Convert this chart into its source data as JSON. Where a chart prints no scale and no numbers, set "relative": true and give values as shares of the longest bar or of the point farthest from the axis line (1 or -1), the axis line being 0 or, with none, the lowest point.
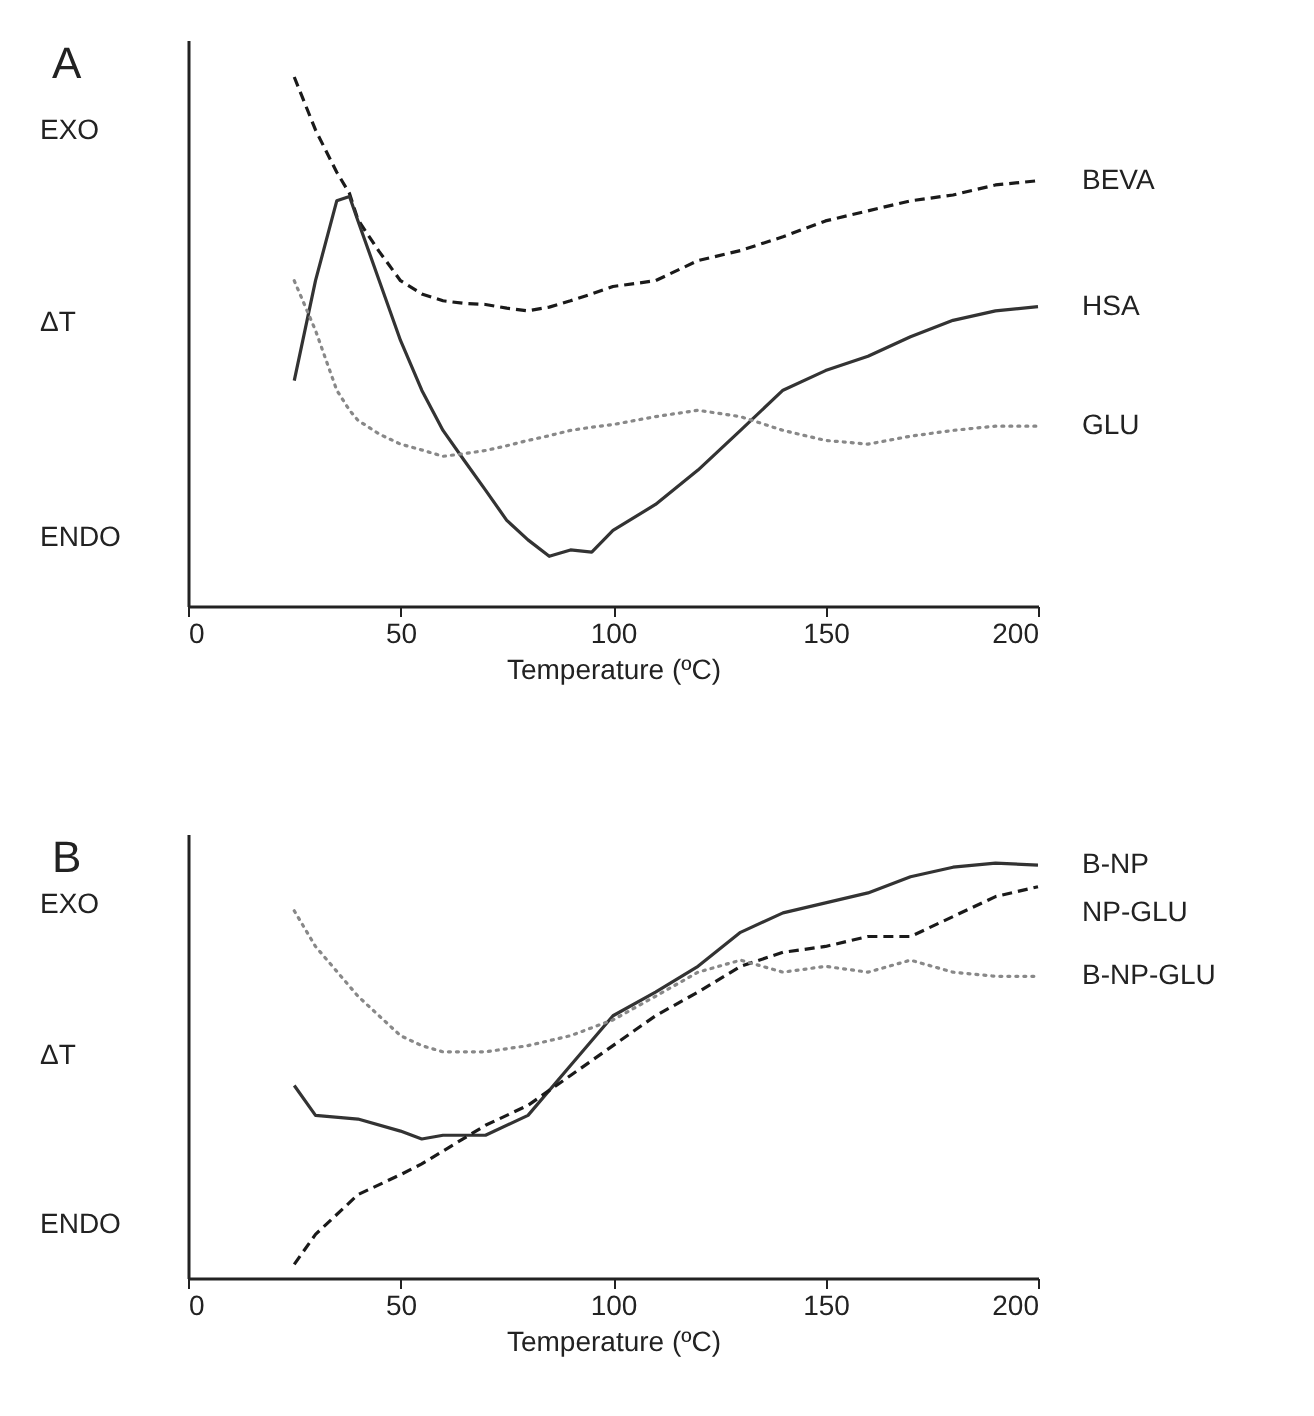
{
  "chart_data": [
    {
      "type": "line",
      "title": "A",
      "xlabel": "Temperature (ºC)",
      "ylabel": "ΔT",
      "annotations": [
        "EXO",
        "ENDO"
      ],
      "relative": true,
      "legend": false,
      "xlim": [
        0,
        200
      ],
      "xticks": [
        0,
        50,
        100,
        150,
        200
      ],
      "x": [
        25,
        30,
        35,
        38,
        40,
        45,
        50,
        55,
        60,
        65,
        70,
        75,
        80,
        85,
        90,
        95,
        100,
        110,
        120,
        130,
        140,
        150,
        160,
        170,
        180,
        190,
        200
      ],
      "series": [
        {
          "name": "BEVA",
          "color": "#1a1a1a",
          "line_style": "dashed",
          "values": [
            1.0,
            0.9,
            0.82,
            0.78,
            0.73,
            0.67,
            0.615,
            0.59,
            0.577,
            0.572,
            0.57,
            0.563,
            0.558,
            0.565,
            0.577,
            0.59,
            0.604,
            0.615,
            0.653,
            0.672,
            0.698,
            0.728,
            0.747,
            0.766,
            0.777,
            0.796,
            0.804
          ]
        },
        {
          "name": "HSA",
          "color": "#333333",
          "line_style": "solid",
          "values": [
            0.426,
            0.615,
            0.766,
            0.774,
            0.728,
            0.615,
            0.502,
            0.408,
            0.332,
            0.275,
            0.219,
            0.162,
            0.125,
            0.094,
            0.106,
            0.102,
            0.143,
            0.192,
            0.257,
            0.332,
            0.408,
            0.445,
            0.472,
            0.509,
            0.54,
            0.558,
            0.566
          ]
        },
        {
          "name": "GLU",
          "color": "#888888",
          "line_style": "dotted",
          "values": [
            0.615,
            0.521,
            0.408,
            0.37,
            0.351,
            0.325,
            0.306,
            0.295,
            0.283,
            0.288,
            0.294,
            0.303,
            0.313,
            0.322,
            0.332,
            0.338,
            0.343,
            0.358,
            0.37,
            0.358,
            0.332,
            0.313,
            0.306,
            0.321,
            0.332,
            0.34,
            0.34
          ]
        }
      ]
    },
    {
      "type": "line",
      "title": "B",
      "xlabel": "Temperature (ºC)",
      "ylabel": "ΔT",
      "annotations": [
        "EXO",
        "ENDO"
      ],
      "relative": true,
      "legend": false,
      "xlim": [
        0,
        200
      ],
      "xticks": [
        0,
        50,
        100,
        150,
        200
      ],
      "x": [
        25,
        30,
        40,
        50,
        55,
        60,
        70,
        80,
        90,
        100,
        110,
        120,
        130,
        140,
        150,
        160,
        170,
        180,
        190,
        200
      ],
      "series": [
        {
          "name": "B-NP",
          "color": "#333333",
          "line_style": "solid",
          "values": [
            0.464,
            0.392,
            0.383,
            0.354,
            0.335,
            0.344,
            0.344,
            0.392,
            0.512,
            0.632,
            0.689,
            0.751,
            0.833,
            0.88,
            0.904,
            0.928,
            0.967,
            0.99,
            1.0,
            0.995
          ]
        },
        {
          "name": "NP-GLU",
          "color": "#1a1a1a",
          "line_style": "dashed",
          "values": [
            0.033,
            0.105,
            0.201,
            0.249,
            0.275,
            0.306,
            0.368,
            0.416,
            0.488,
            0.56,
            0.632,
            0.689,
            0.751,
            0.785,
            0.799,
            0.823,
            0.823,
            0.871,
            0.919,
            0.943
          ]
        },
        {
          "name": "B-NP-GLU",
          "color": "#888888",
          "line_style": "dotted",
          "values": [
            0.885,
            0.799,
            0.679,
            0.584,
            0.56,
            0.545,
            0.545,
            0.56,
            0.584,
            0.622,
            0.679,
            0.737,
            0.766,
            0.737,
            0.751,
            0.737,
            0.766,
            0.737,
            0.727,
            0.727
          ]
        }
      ]
    }
  ]
}
